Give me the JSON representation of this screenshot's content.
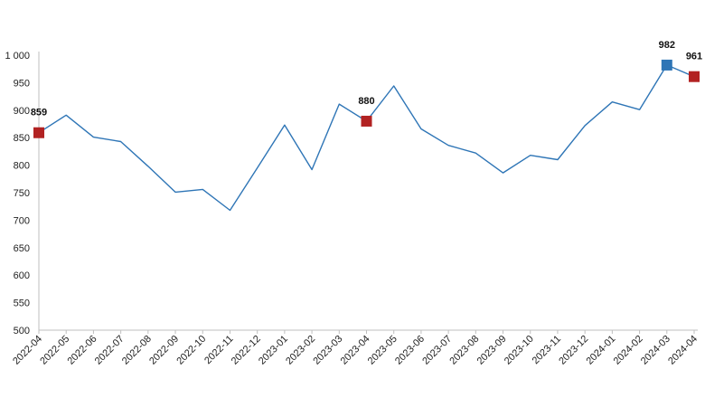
{
  "chart_data": {
    "type": "line",
    "title": "",
    "xlabel": "",
    "ylabel": "",
    "ylim": [
      500,
      1000
    ],
    "yticks": [
      {
        "value": 500,
        "label": "500"
      },
      {
        "value": 550,
        "label": "550"
      },
      {
        "value": 600,
        "label": "600"
      },
      {
        "value": 650,
        "label": "650"
      },
      {
        "value": 700,
        "label": "700"
      },
      {
        "value": 750,
        "label": "750"
      },
      {
        "value": 800,
        "label": "800"
      },
      {
        "value": 850,
        "label": "850"
      },
      {
        "value": 900,
        "label": "900"
      },
      {
        "value": 950,
        "label": "950"
      },
      {
        "value": 1000,
        "label": "1 000"
      }
    ],
    "categories": [
      "2022-04",
      "2022-05",
      "2022-06",
      "2022-07",
      "2022-08",
      "2022-09",
      "2022-10",
      "2022-11",
      "2022-12",
      "2023-01",
      "2023-02",
      "2023-03",
      "2023-04",
      "2023-05",
      "2023-06",
      "2023-07",
      "2023-08",
      "2023-09",
      "2023-10",
      "2023-11",
      "2023-12",
      "2024-01",
      "2024-02",
      "2024-03",
      "2024-04"
    ],
    "grid": false,
    "series": [
      {
        "color": "#2e75b6",
        "values": [
          859,
          891,
          851,
          843,
          798,
          751,
          756,
          718,
          795,
          873,
          792,
          911,
          880,
          944,
          866,
          836,
          822,
          786,
          818,
          810,
          872,
          915,
          901,
          982,
          961
        ]
      }
    ],
    "highlights": [
      {
        "category": "2022-04",
        "value": 859,
        "label": "859",
        "color": "#b22222"
      },
      {
        "category": "2023-04",
        "value": 880,
        "label": "880",
        "color": "#b22222"
      },
      {
        "category": "2024-03",
        "value": 982,
        "label": "982",
        "color": "#2e75b6"
      },
      {
        "category": "2024-04",
        "value": 961,
        "label": "961",
        "color": "#b22222"
      }
    ]
  }
}
